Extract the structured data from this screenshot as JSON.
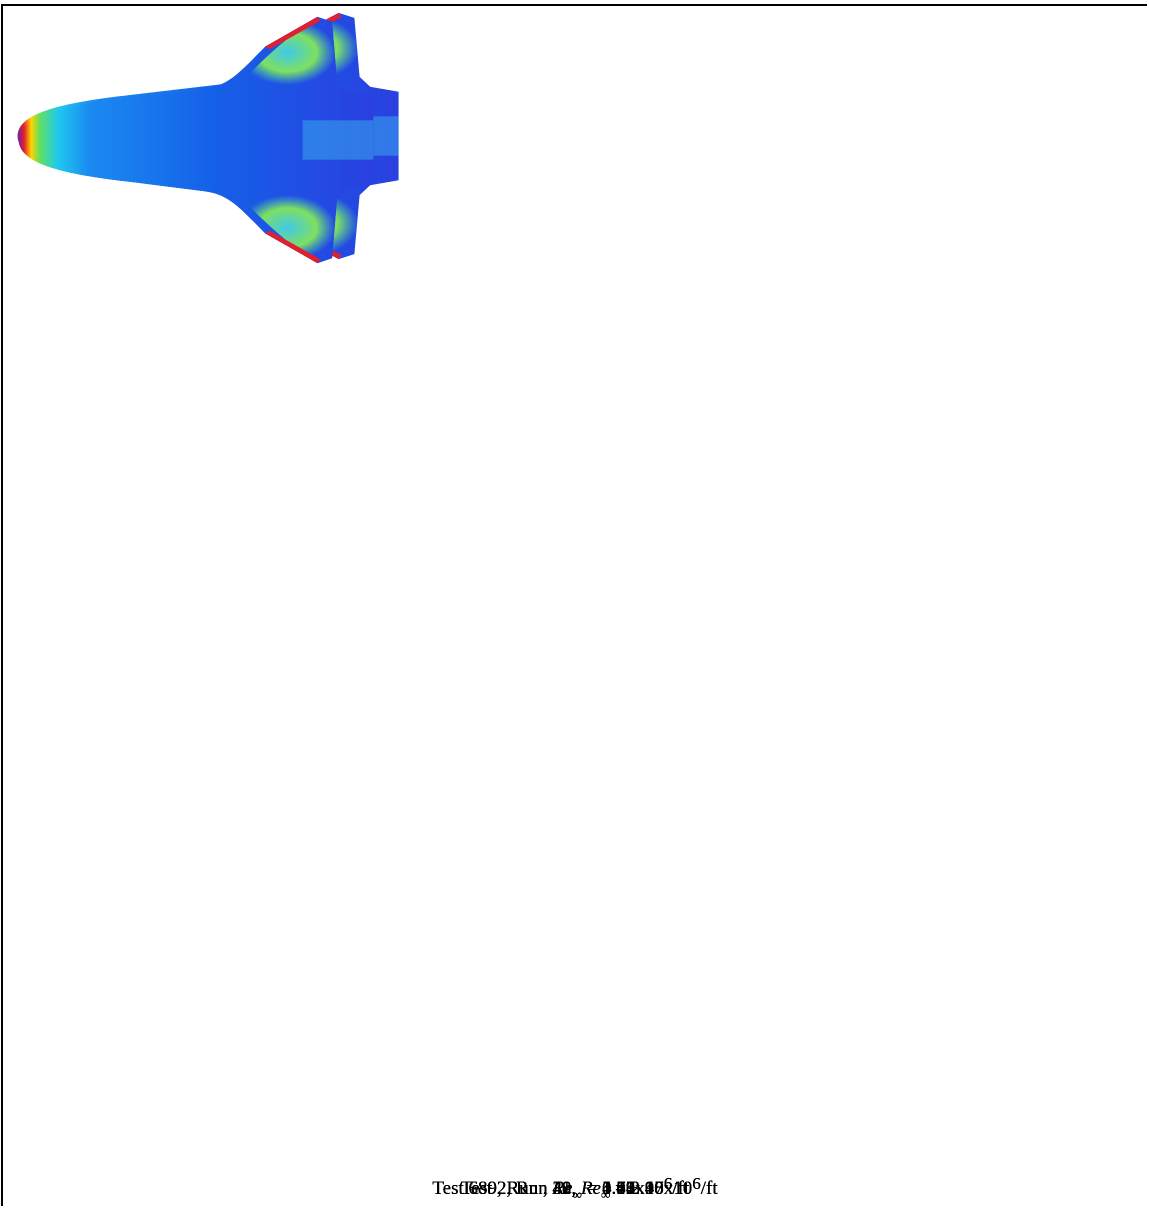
{
  "caption_format": {
    "symbol": "Re",
    "subscript": "∞",
    "exponent": "6",
    "unit": "/ft"
  },
  "cells": [
    {
      "prefix": "Test , Run ,",
      "value": "= 0.56x10"
    },
    {
      "prefix": "Test , Run ,",
      "value": "= 1.71x10"
    },
    {
      "prefix": "Test 6892, Run 41,",
      "value": "= 3.46x10"
    },
    {
      "prefix": "Test , Run ,",
      "value": "= 0.84x10"
    },
    {
      "prefix": "Test 6892, Run 38,",
      "value": "= 2.08x10"
    },
    {
      "prefix": "Test , Run ,",
      "value": "= 4.12x10"
    },
    {
      "prefix": "Test , Run ,",
      "value": "= 1.07x10"
    },
    {
      "prefix": "Test 6892, Run 39,",
      "value": "= 2.48x10"
    },
    {
      "prefix": "Test , Run ,",
      "value": "= 4.65x10"
    },
    {
      "prefix": "Test , Run ,",
      "value": "= 1.39x10"
    },
    {
      "prefix": "Test 6892, Run 40,",
      "value": "= 2.97x10"
    },
    {
      "prefix": "Test , Run ,",
      "value": "= 5.41x10"
    }
  ]
}
